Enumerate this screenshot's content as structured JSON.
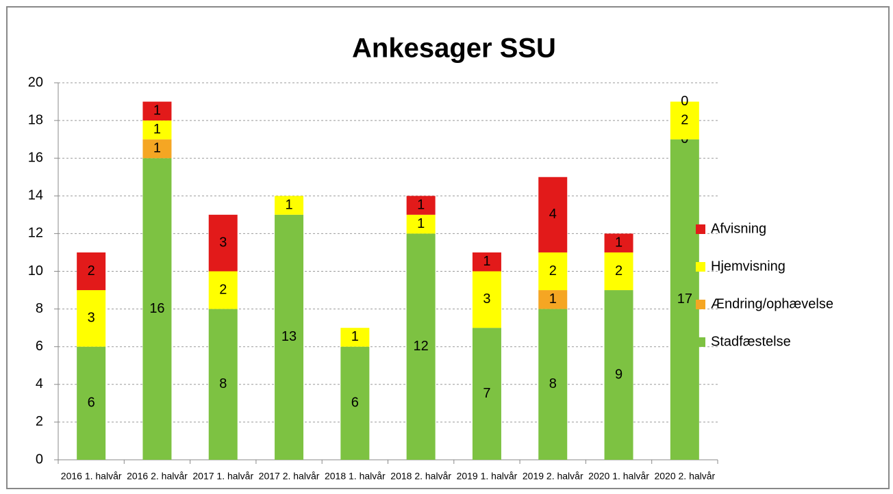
{
  "chart_data": {
    "type": "stacked_bar",
    "title": "Ankesager SSU",
    "categories": [
      "2016 1. halvår",
      "2016 2. halvår",
      "2017 1. halvår",
      "2017 2. halvår",
      "2018 1. halvår",
      "2018 2. halvår",
      "2019 1. halvår",
      "2019 2. halvår",
      "2020 1. halvår",
      "2020 2. halvår"
    ],
    "series": [
      {
        "name": "Stadfæstelse",
        "color": "#7dc242",
        "values": [
          6,
          16,
          8,
          13,
          6,
          12,
          7,
          8,
          9,
          17
        ]
      },
      {
        "name": "Ændring/ophævelse",
        "color": "#f5a623",
        "values": [
          null,
          1,
          null,
          null,
          null,
          null,
          null,
          1,
          null,
          0
        ]
      },
      {
        "name": "Hjemvisning",
        "color": "#ffff00",
        "values": [
          3,
          1,
          2,
          1,
          1,
          1,
          3,
          2,
          2,
          2
        ]
      },
      {
        "name": "Afvisning",
        "color": "#e21a1a",
        "values": [
          2,
          1,
          3,
          null,
          null,
          1,
          1,
          4,
          1,
          0
        ]
      }
    ],
    "ylim": [
      0,
      20
    ],
    "yticks": [
      0,
      2,
      4,
      6,
      8,
      10,
      12,
      14,
      16,
      18,
      20
    ],
    "grid": true,
    "legend": "right"
  }
}
